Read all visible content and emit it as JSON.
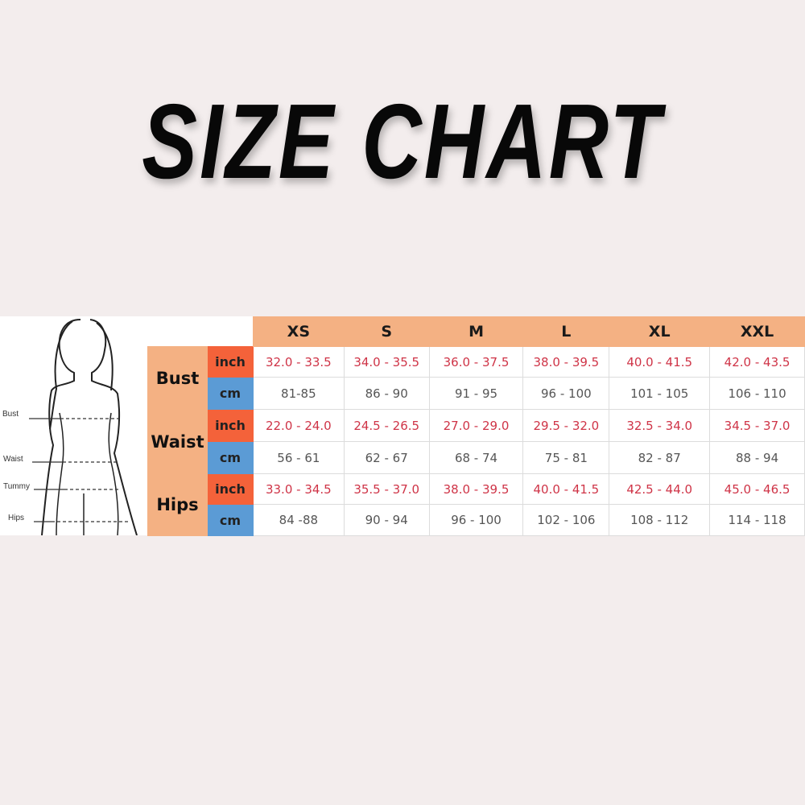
{
  "title": "SIZE CHART",
  "figure": {
    "labels": [
      "Bust",
      "Waist",
      "Tummy",
      "Hips"
    ]
  },
  "colors": {
    "header": "#f4b183",
    "inch": "#f4623a",
    "cm": "#5b9bd5",
    "inch_text": "#cf3447",
    "cm_text": "#555555",
    "background": "#f3eded"
  },
  "table": {
    "sizes": [
      "XS",
      "S",
      "M",
      "L",
      "XL",
      "XXL"
    ],
    "rows": [
      {
        "measure": "Bust",
        "inch_label": "inch",
        "cm_label": "cm",
        "inch": [
          "32.0 - 33.5",
          "34.0 - 35.5",
          "36.0 - 37.5",
          "38.0 - 39.5",
          "40.0 - 41.5",
          "42.0 - 43.5"
        ],
        "cm": [
          "81-85",
          "86 - 90",
          "91 - 95",
          "96 - 100",
          "101 - 105",
          "106 - 110"
        ]
      },
      {
        "measure": "Waist",
        "inch_label": "inch",
        "cm_label": "cm",
        "inch": [
          "22.0 - 24.0",
          "24.5 - 26.5",
          "27.0 - 29.0",
          "29.5 - 32.0",
          "32.5 - 34.0",
          "34.5 - 37.0"
        ],
        "cm": [
          "56 - 61",
          "62 - 67",
          "68 - 74",
          "75 - 81",
          "82 - 87",
          "88 - 94"
        ]
      },
      {
        "measure": "Hips",
        "inch_label": "inch",
        "cm_label": "cm",
        "inch": [
          "33.0 - 34.5",
          "35.5 - 37.0",
          "38.0 - 39.5",
          "40.0 - 41.5",
          "42.5 - 44.0",
          "45.0 - 46.5"
        ],
        "cm": [
          "84 -88",
          "90 - 94",
          "96 - 100",
          "102 - 106",
          "108 - 112",
          "114 - 118"
        ]
      }
    ]
  }
}
